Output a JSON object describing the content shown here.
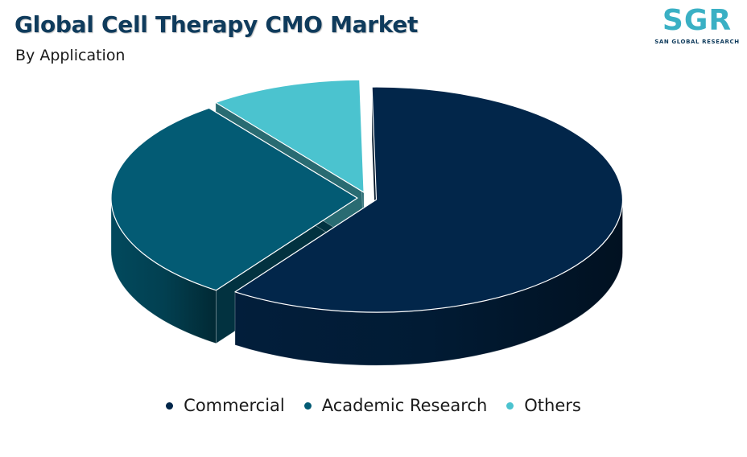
{
  "header": {
    "title": "Global Cell Therapy CMO Market",
    "subtitle": "By Application"
  },
  "logo": {
    "mark": "SGR",
    "name": "SAN GLOBAL RESEARCH"
  },
  "chart_data": {
    "type": "pie",
    "style": "3d-exploded",
    "title": "Global Cell Therapy CMO Market",
    "subtitle": "By Application",
    "legend_position": "bottom",
    "labels": [
      "Commercial",
      "Academic Research",
      "Others"
    ],
    "values": [
      60,
      30,
      10
    ],
    "colors": [
      "#02264a",
      "#035b74",
      "#4bc3cf"
    ]
  }
}
